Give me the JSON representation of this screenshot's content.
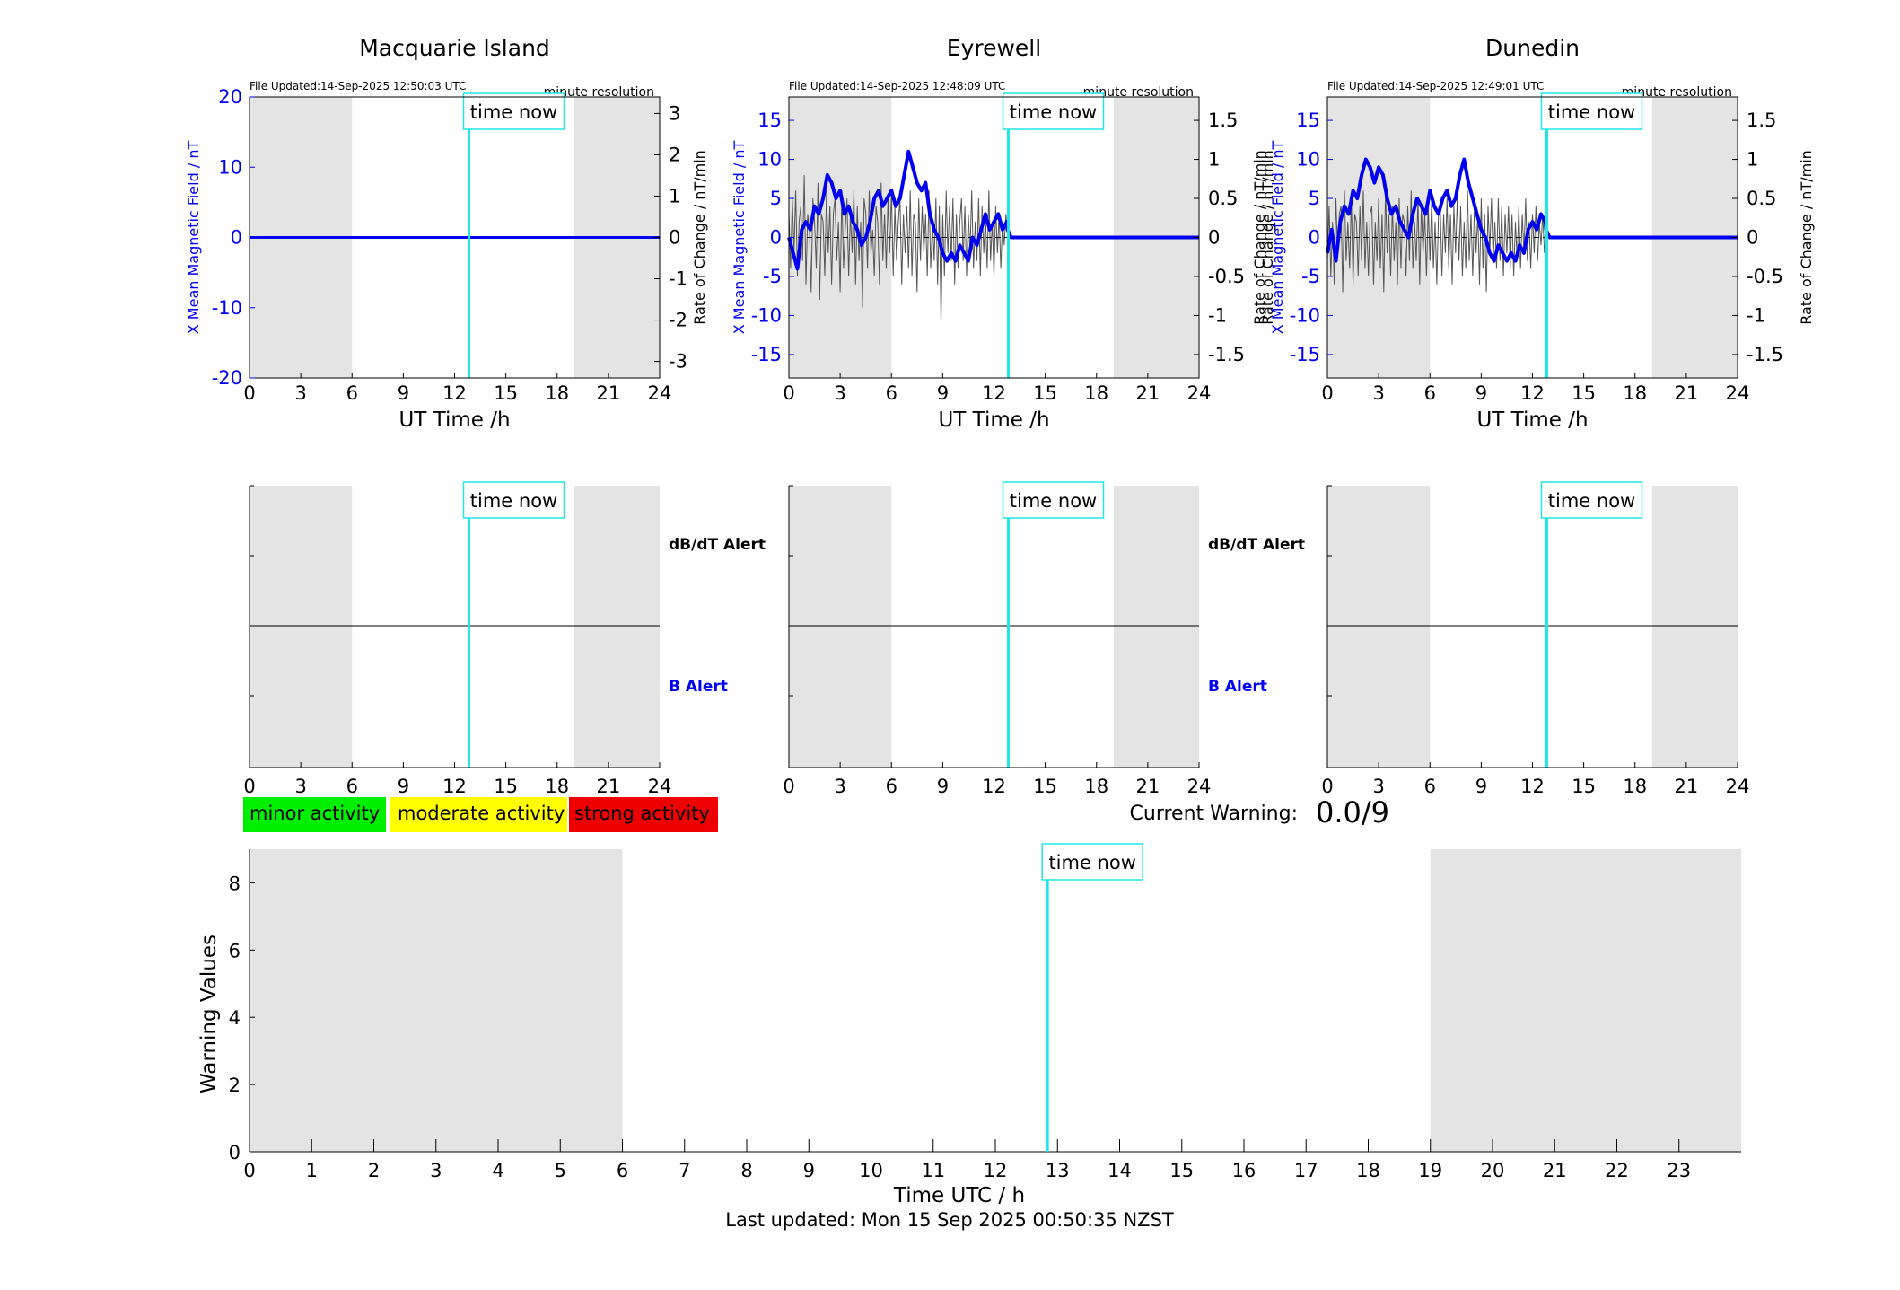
{
  "figure": {
    "last_updated": "Last updated: Mon 15 Sep 2025 00:50:35 NZST",
    "time_now_label": "time now",
    "now_hour": 12.84,
    "night_shading_hours": [
      [
        0,
        6
      ],
      [
        19,
        24
      ]
    ]
  },
  "colors": {
    "field": "#0000ee",
    "rate": "#555555",
    "time_now": "#22e6e6",
    "night": "#e4e4e4",
    "minor": "#00ee00",
    "moderate": "#ffff00",
    "strong": "#ee0000",
    "b_alert": "#0000ee"
  },
  "stations": [
    {
      "name": "Macquarie Island",
      "file_updated": "File Updated:14-Sep-2025 12:50:03 UTC",
      "resolution": "minute resolution",
      "ylabel_left": "X Mean Magnetic Field / nT",
      "ylabel_right": "Rate of Change / nT/min",
      "xlabel": "UT Time /h",
      "ylim_left": [
        -20,
        20
      ],
      "yticks_left": [
        -20,
        -10,
        0,
        10,
        20
      ],
      "ylim_right": [
        -3.4,
        3.4
      ],
      "yticks_right": [
        -3,
        -2,
        -1,
        0,
        1,
        2,
        3
      ],
      "field_series": {
        "hours": [
          0,
          24
        ],
        "values": [
          0,
          0
        ]
      },
      "rate_series": {
        "hours": [],
        "values": []
      }
    },
    {
      "name": "Eyrewell",
      "file_updated": "File Updated:14-Sep-2025 12:48:09 UTC",
      "resolution": "minute resolution",
      "ylabel_left": "X Mean Magnetic Field / nT",
      "ylabel_right": "Rate of Change / nT/min",
      "xlabel": "UT Time /h",
      "ylim_left": [
        -18,
        18
      ],
      "yticks_left": [
        -15,
        -10,
        -5,
        0,
        5,
        10,
        15
      ],
      "ylim_right": [
        -1.8,
        1.8
      ],
      "yticks_right": [
        -1.5,
        -1,
        -0.5,
        0,
        0.5,
        1,
        1.5
      ],
      "field_series": {
        "hours": [
          0,
          0.25,
          0.5,
          0.75,
          1,
          1.25,
          1.5,
          1.75,
          2,
          2.25,
          2.5,
          2.75,
          3,
          3.25,
          3.5,
          3.75,
          4,
          4.25,
          4.5,
          4.75,
          5,
          5.25,
          5.5,
          5.75,
          6,
          6.25,
          6.5,
          6.75,
          7,
          7.25,
          7.5,
          7.75,
          8,
          8.25,
          8.5,
          8.75,
          9,
          9.25,
          9.5,
          9.75,
          10,
          10.25,
          10.5,
          10.75,
          11,
          11.25,
          11.5,
          11.75,
          12,
          12.25,
          12.5,
          12.75,
          12.8,
          13,
          24
        ],
        "values": [
          0,
          -2,
          -4,
          1,
          2,
          1,
          4,
          3,
          5,
          8,
          7,
          5,
          6,
          3,
          4,
          2,
          1,
          -1,
          0,
          2,
          5,
          6,
          4,
          5,
          6,
          4,
          5,
          8,
          11,
          9,
          7,
          6,
          7,
          3,
          1,
          0,
          -2,
          -3,
          -2,
          -3,
          -1,
          -2,
          -3,
          0,
          -1,
          1,
          3,
          1,
          2,
          3,
          1,
          2,
          1,
          0,
          0
        ]
      },
      "rate_series": {
        "hours": [
          0,
          0.1,
          0.2,
          0.3,
          0.4,
          0.5,
          0.6,
          0.7,
          0.8,
          0.9,
          1,
          1.1,
          1.2,
          1.3,
          1.4,
          1.5,
          1.6,
          1.7,
          1.8,
          1.9,
          2,
          2.1,
          2.2,
          2.3,
          2.4,
          2.5,
          2.6,
          2.7,
          2.8,
          2.9,
          3,
          3.1,
          3.2,
          3.3,
          3.4,
          3.5,
          3.6,
          3.7,
          3.8,
          3.9,
          4,
          4.1,
          4.2,
          4.3,
          4.4,
          4.5,
          4.6,
          4.7,
          4.8,
          4.9,
          5,
          5.1,
          5.2,
          5.3,
          5.4,
          5.5,
          5.6,
          5.7,
          5.8,
          5.9,
          6,
          6.1,
          6.2,
          6.3,
          6.4,
          6.5,
          6.6,
          6.7,
          6.8,
          6.9,
          7,
          7.1,
          7.2,
          7.3,
          7.4,
          7.5,
          7.6,
          7.7,
          7.8,
          7.9,
          8,
          8.1,
          8.2,
          8.3,
          8.4,
          8.5,
          8.6,
          8.7,
          8.8,
          8.9,
          9,
          9.1,
          9.2,
          9.3,
          9.4,
          9.5,
          9.6,
          9.7,
          9.8,
          9.9,
          10,
          10.1,
          10.2,
          10.3,
          10.4,
          10.5,
          10.6,
          10.7,
          10.8,
          10.9,
          11,
          11.1,
          11.2,
          11.3,
          11.4,
          11.5,
          11.6,
          11.7,
          11.8,
          11.9,
          12,
          12.1,
          12.2,
          12.3,
          12.4,
          12.5,
          12.6,
          12.7,
          12.8
        ],
        "values": [
          0.3,
          -0.4,
          0.5,
          -0.2,
          0.6,
          -0.5,
          0.2,
          0.4,
          -0.3,
          0.8,
          -0.6,
          0.3,
          0.1,
          -0.7,
          0.5,
          0.2,
          -0.4,
          0.7,
          -0.8,
          0.3,
          0.2,
          -0.5,
          0.6,
          -0.2,
          0.4,
          -0.6,
          0.3,
          0.5,
          -0.3,
          0.2,
          -0.7,
          0.6,
          -0.4,
          0.1,
          0.5,
          -0.5,
          0.3,
          -0.2,
          0.6,
          -0.6,
          0.4,
          -0.3,
          0.2,
          -0.9,
          0.5,
          0.3,
          -0.4,
          0.6,
          -0.2,
          0.1,
          -0.5,
          0.4,
          0.2,
          -0.6,
          0.7,
          -0.3,
          0.3,
          -0.4,
          0.5,
          -0.2,
          0.6,
          -0.5,
          0.4,
          -0.3,
          0.2,
          0.5,
          -0.6,
          0.3,
          -0.2,
          0.4,
          -0.4,
          0.6,
          -0.5,
          0.3,
          0.2,
          -0.7,
          0.5,
          -0.3,
          0.4,
          -0.2,
          0.3,
          -0.5,
          0.6,
          -0.4,
          0.2,
          -0.3,
          0.5,
          -0.6,
          0.4,
          -1.1,
          0.3,
          -0.5,
          0.6,
          -0.2,
          0.4,
          -0.3,
          0.5,
          -0.6,
          0.3,
          -0.4,
          0.2,
          0.5,
          -0.3,
          0.4,
          -0.5,
          0.3,
          -0.2,
          0.6,
          -0.4,
          0.2,
          -0.3,
          0.5,
          -0.5,
          0.4,
          -0.2,
          0.3,
          -0.4,
          0.6,
          -0.3,
          0.2,
          -0.5,
          0.4,
          -0.2,
          0.3,
          -0.4,
          0.2,
          -0.1,
          0.3,
          0.0
        ]
      }
    },
    {
      "name": "Dunedin",
      "file_updated": "File Updated:14-Sep-2025 12:49:01 UTC",
      "resolution": "minute resolution",
      "ylabel_left": "X Mean Magnetic Field / nT",
      "ylabel_right": "Rate of Change / nT/min",
      "ylabel_left_extra": "Rate of Change / nT/min",
      "xlabel": "UT Time /h",
      "ylim_left": [
        -18,
        18
      ],
      "yticks_left": [
        -15,
        -10,
        -5,
        0,
        5,
        10,
        15
      ],
      "ylim_right": [
        -1.8,
        1.8
      ],
      "yticks_right": [
        -1.5,
        -1,
        -0.5,
        0,
        0.5,
        1,
        1.5
      ],
      "field_series": {
        "hours": [
          0,
          0.25,
          0.5,
          0.75,
          1,
          1.25,
          1.5,
          1.75,
          2,
          2.25,
          2.5,
          2.75,
          3,
          3.25,
          3.5,
          3.75,
          4,
          4.25,
          4.5,
          4.75,
          5,
          5.25,
          5.5,
          5.75,
          6,
          6.25,
          6.5,
          6.75,
          7,
          7.25,
          7.5,
          7.75,
          8,
          8.25,
          8.5,
          8.75,
          9,
          9.25,
          9.5,
          9.75,
          10,
          10.25,
          10.5,
          10.75,
          11,
          11.25,
          11.5,
          11.75,
          12,
          12.25,
          12.5,
          12.75,
          12.8,
          13,
          24
        ],
        "values": [
          -2,
          1,
          -3,
          2,
          4,
          3,
          6,
          5,
          8,
          10,
          9,
          7,
          9,
          8,
          5,
          3,
          4,
          2,
          1,
          0,
          3,
          5,
          4,
          3,
          6,
          4,
          3,
          5,
          6,
          4,
          5,
          8,
          10,
          7,
          5,
          3,
          1,
          0,
          -2,
          -3,
          -1,
          -2,
          -3,
          -2,
          -3,
          -1,
          -2,
          1,
          2,
          1,
          3,
          2,
          1,
          0,
          0
        ]
      },
      "rate_series": {
        "hours": [
          0,
          0.1,
          0.2,
          0.3,
          0.4,
          0.5,
          0.6,
          0.7,
          0.8,
          0.9,
          1,
          1.1,
          1.2,
          1.3,
          1.4,
          1.5,
          1.6,
          1.7,
          1.8,
          1.9,
          2,
          2.1,
          2.2,
          2.3,
          2.4,
          2.5,
          2.6,
          2.7,
          2.8,
          2.9,
          3,
          3.1,
          3.2,
          3.3,
          3.4,
          3.5,
          3.6,
          3.7,
          3.8,
          3.9,
          4,
          4.1,
          4.2,
          4.3,
          4.4,
          4.5,
          4.6,
          4.7,
          4.8,
          4.9,
          5,
          5.1,
          5.2,
          5.3,
          5.4,
          5.5,
          5.6,
          5.7,
          5.8,
          5.9,
          6,
          6.1,
          6.2,
          6.3,
          6.4,
          6.5,
          6.6,
          6.7,
          6.8,
          6.9,
          7,
          7.1,
          7.2,
          7.3,
          7.4,
          7.5,
          7.6,
          7.7,
          7.8,
          7.9,
          8,
          8.1,
          8.2,
          8.3,
          8.4,
          8.5,
          8.6,
          8.7,
          8.8,
          8.9,
          9,
          9.1,
          9.2,
          9.3,
          9.4,
          9.5,
          9.6,
          9.7,
          9.8,
          9.9,
          10,
          10.1,
          10.2,
          10.3,
          10.4,
          10.5,
          10.6,
          10.7,
          10.8,
          10.9,
          11,
          11.1,
          11.2,
          11.3,
          11.4,
          11.5,
          11.6,
          11.7,
          11.8,
          11.9,
          12,
          12.1,
          12.2,
          12.3,
          12.4,
          12.5,
          12.6,
          12.7,
          12.8
        ],
        "values": [
          -0.3,
          0.4,
          -0.5,
          0.2,
          -0.6,
          0.5,
          -0.2,
          0.3,
          0.4,
          -0.7,
          0.6,
          -0.3,
          0.2,
          -0.4,
          0.5,
          -0.6,
          0.3,
          0.2,
          -0.5,
          0.4,
          -0.3,
          0.6,
          -0.4,
          0.2,
          -0.5,
          0.3,
          0.4,
          -0.6,
          0.2,
          -0.3,
          0.5,
          -0.4,
          0.3,
          -0.7,
          0.6,
          -0.2,
          0.3,
          -0.5,
          0.4,
          -0.3,
          0.2,
          -0.6,
          0.5,
          -0.4,
          0.3,
          0.2,
          -0.5,
          0.4,
          -0.3,
          0.6,
          -0.4,
          0.2,
          -0.3,
          0.5,
          -0.6,
          0.4,
          -0.2,
          0.3,
          -0.5,
          0.4,
          -0.3,
          0.5,
          -0.4,
          0.2,
          -0.6,
          0.3,
          0.4,
          -0.5,
          0.3,
          -0.2,
          0.5,
          -0.4,
          0.3,
          -0.6,
          0.4,
          -0.2,
          0.5,
          -0.3,
          0.4,
          -0.5,
          0.2,
          -0.4,
          0.6,
          -0.3,
          0.3,
          -0.5,
          0.4,
          -0.2,
          0.3,
          -0.6,
          0.5,
          -0.4,
          0.3,
          -0.7,
          0.4,
          -0.2,
          0.5,
          -0.3,
          0.2,
          -0.4,
          0.5,
          -0.3,
          0.4,
          -0.5,
          0.3,
          -0.2,
          0.4,
          -0.4,
          0.3,
          -0.5,
          0.2,
          -0.3,
          0.4,
          -0.4,
          0.3,
          -0.2,
          0.5,
          -0.3,
          0.2,
          -0.4,
          0.3,
          -0.2,
          0.4,
          -0.3,
          0.2,
          -0.1,
          0.3,
          -0.2,
          0.0
        ]
      }
    }
  ],
  "alert_panels": {
    "db_dt_label": "dB/dT Alert",
    "b_label": "B Alert",
    "xticks": [
      0,
      3,
      6,
      9,
      12,
      15,
      18,
      21,
      24
    ]
  },
  "legend": {
    "minor": "minor activity",
    "moderate": "moderate activity",
    "strong": "strong activity"
  },
  "current_warning": {
    "label": "Current Warning:",
    "value": "0.0/9"
  },
  "chart_data": {
    "type": "bar",
    "ylabel": "Warning Values",
    "xlabel": "Time UTC / h",
    "xlim": [
      0,
      24
    ],
    "ylim": [
      0,
      9
    ],
    "xticks": [
      0,
      1,
      2,
      3,
      4,
      5,
      6,
      7,
      8,
      9,
      10,
      11,
      12,
      13,
      14,
      15,
      16,
      17,
      18,
      19,
      20,
      21,
      22,
      23
    ],
    "yticks": [
      0,
      2,
      4,
      6,
      8
    ],
    "categories": [],
    "values": [],
    "grid": false
  }
}
